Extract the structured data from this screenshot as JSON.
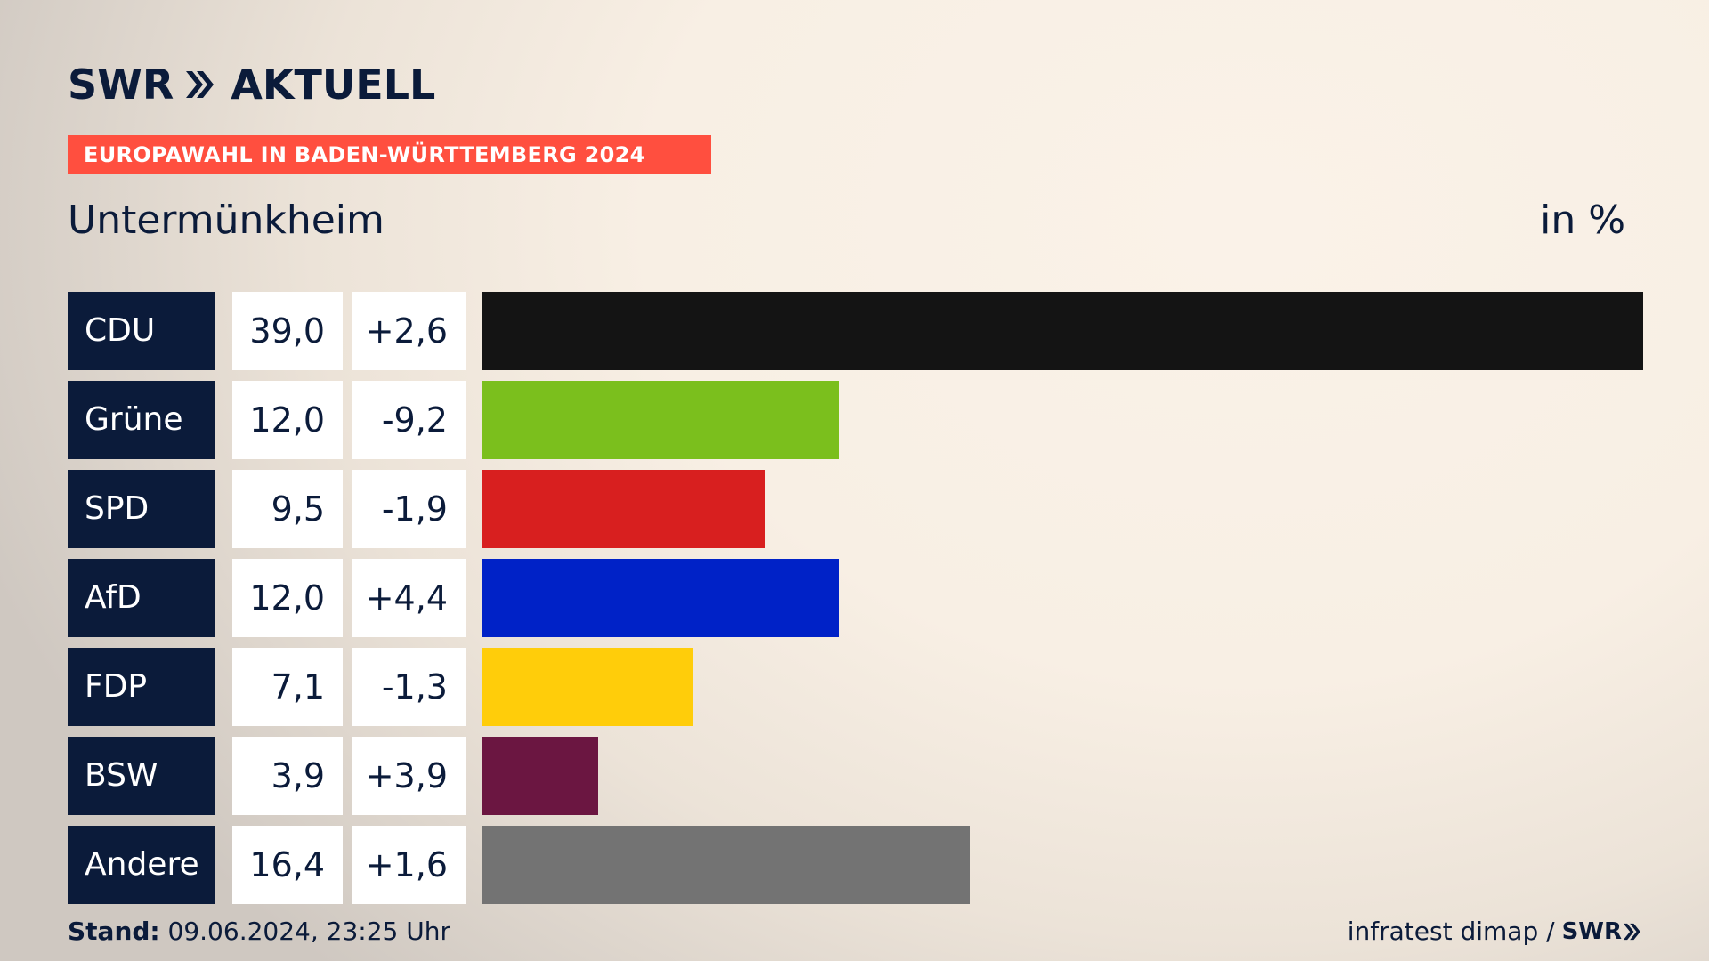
{
  "header": {
    "logo_brand": "SWR",
    "logo_text": "AKTUELL",
    "banner": "EUROPAWAHL IN BADEN-WÜRTTEMBERG 2024",
    "place": "Untermünkheim",
    "unit": "in %"
  },
  "chart_data": {
    "type": "bar",
    "orientation": "horizontal",
    "categories": [
      "CDU",
      "Grüne",
      "SPD",
      "AfD",
      "FDP",
      "BSW",
      "Andere"
    ],
    "values": [
      39.0,
      12.0,
      9.5,
      12.0,
      7.1,
      3.9,
      16.4
    ],
    "value_labels": [
      "39,0",
      "12,0",
      "9,5",
      "12,0",
      "7,1",
      "3,9",
      "16,4"
    ],
    "diff_labels": [
      "+2,6",
      "-9,2",
      "-1,9",
      "+4,4",
      "-1,3",
      "+3,9",
      "+1,6"
    ],
    "colors": [
      "#141414",
      "#7bbf1d",
      "#d81f1f",
      "#0022c7",
      "#ffcd0a",
      "#6b1641",
      "#737373"
    ],
    "xlim": [
      0,
      39.0
    ],
    "title": "Untermünkheim",
    "unit": "in %",
    "grid": false,
    "legend": "none"
  },
  "footer": {
    "stand_label": "Stand:",
    "stand_value": "09.06.2024, 23:25 Uhr",
    "source": "infratest dimap /",
    "source_logo": "SWR"
  },
  "colors": {
    "navy": "#0b1b3a",
    "banner_red": "#ff4f3f"
  }
}
